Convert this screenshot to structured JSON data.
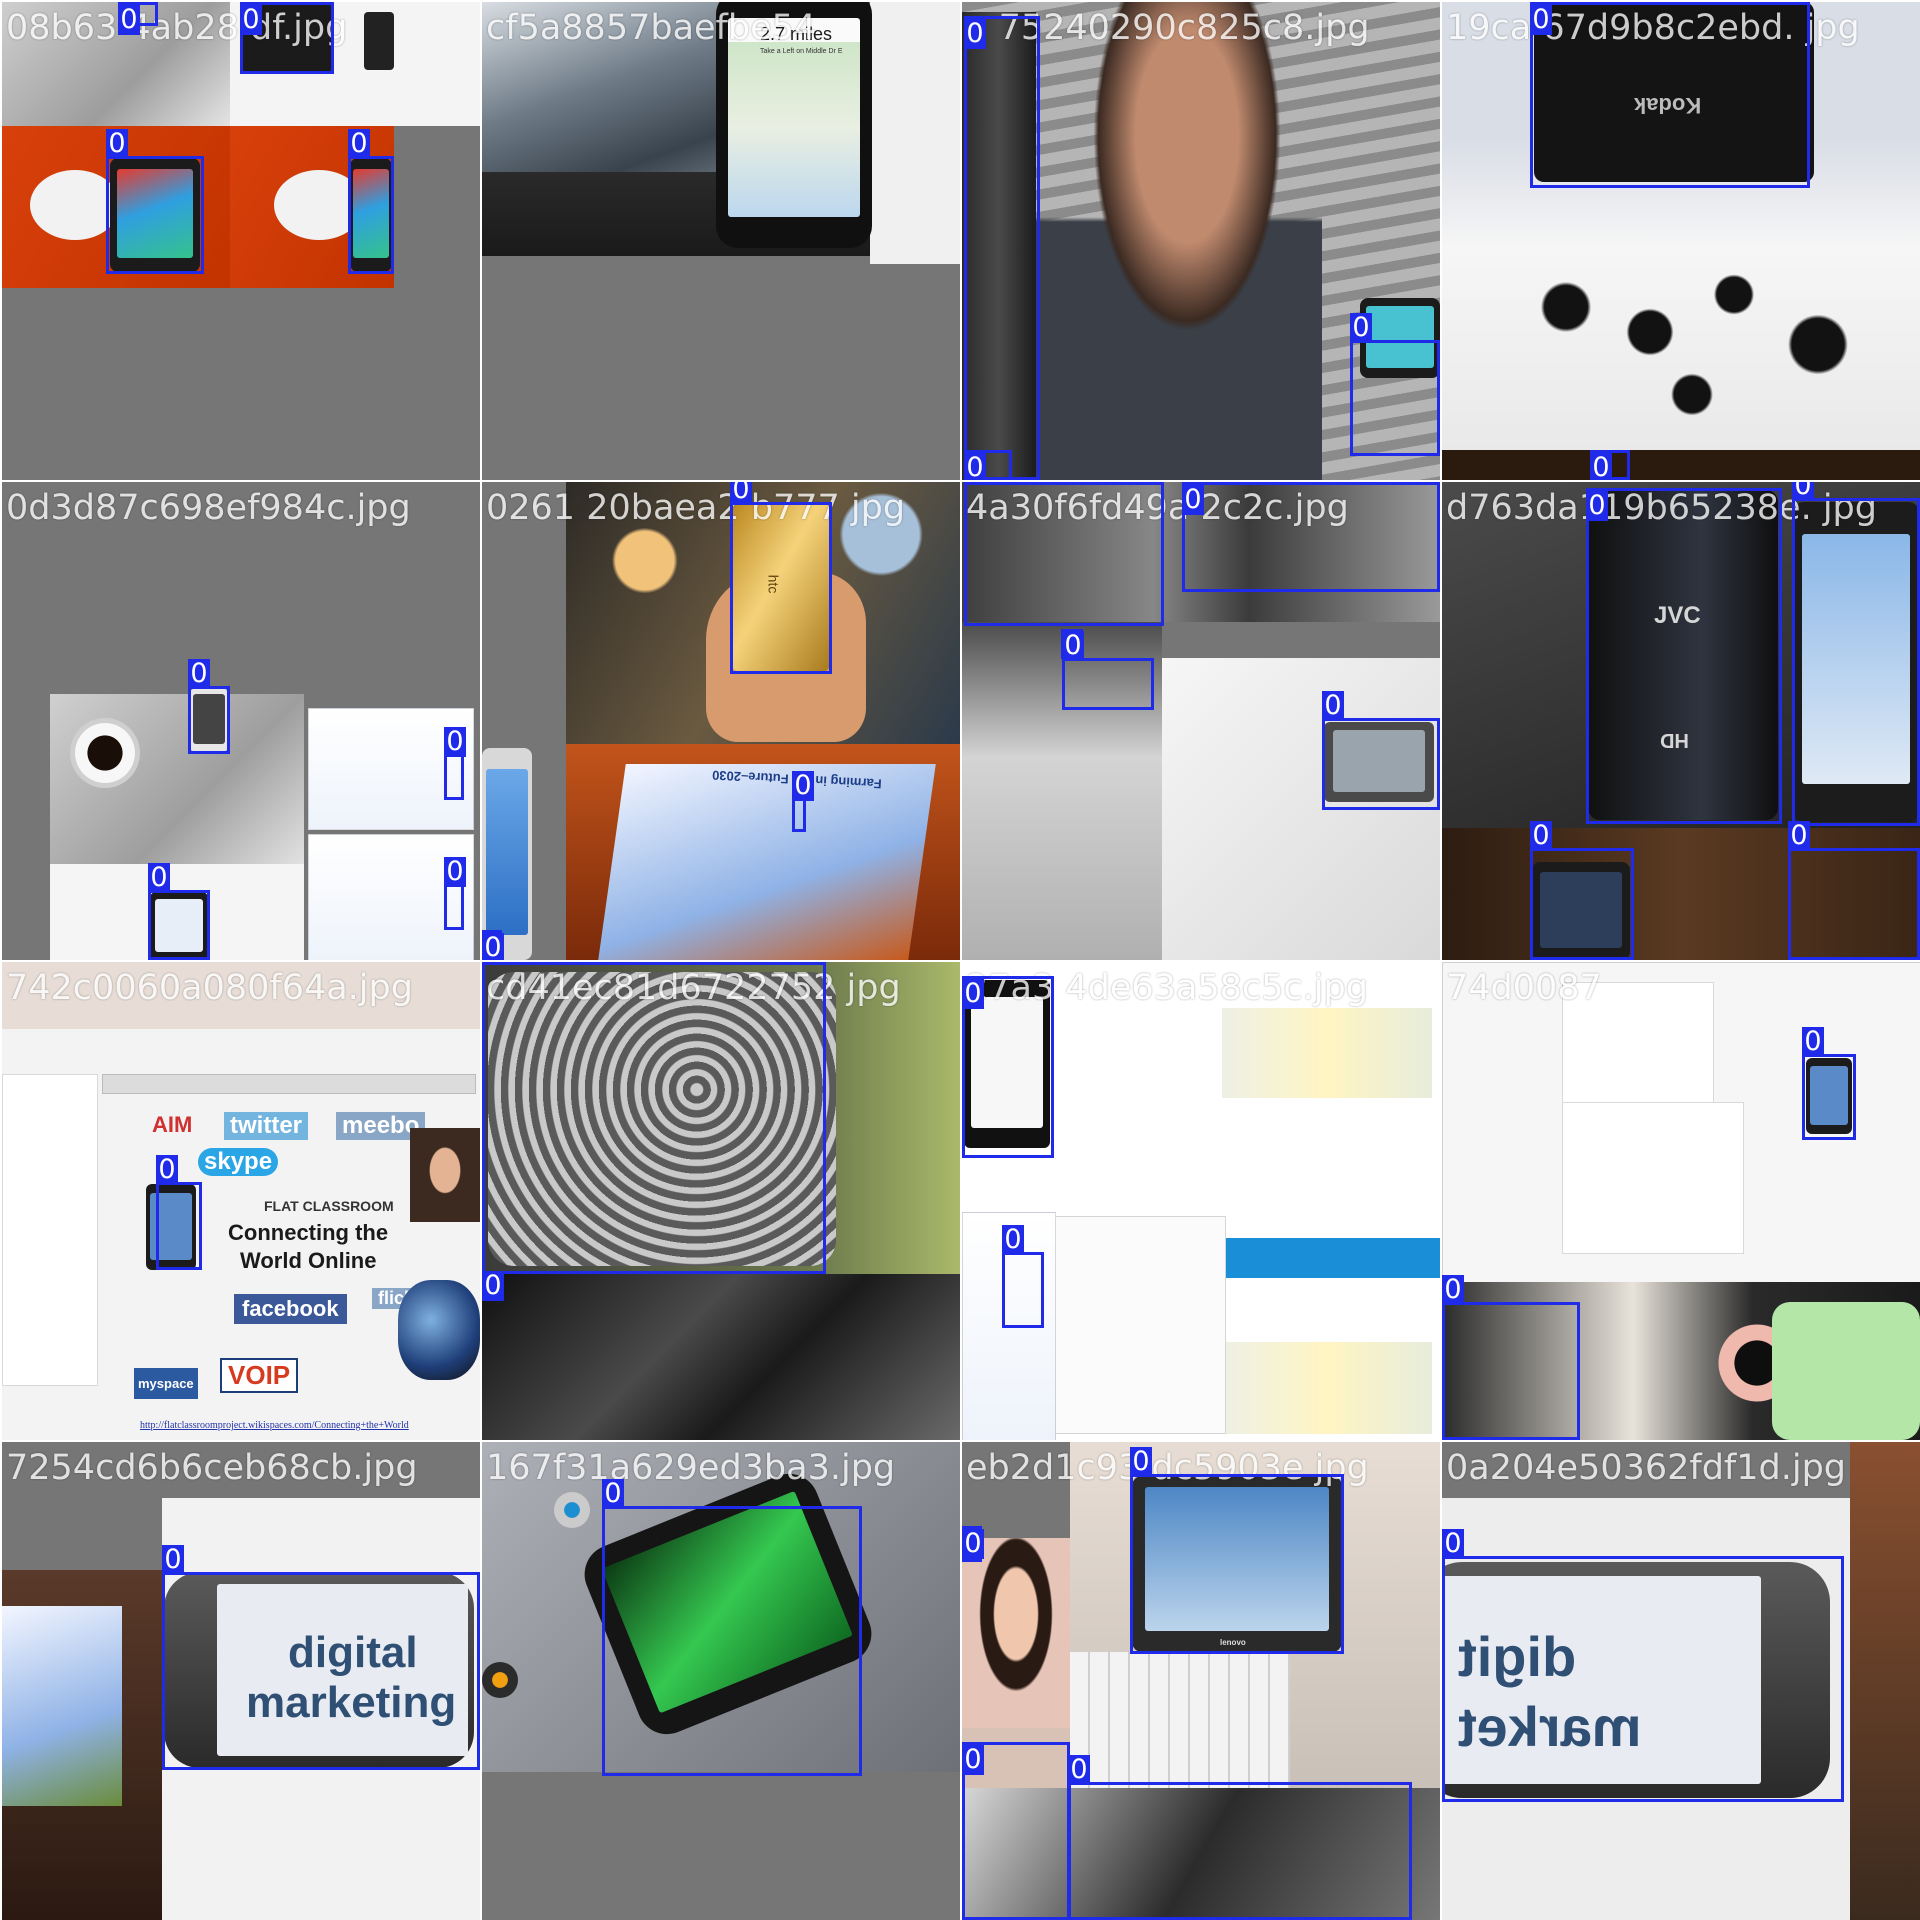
{
  "mosaic": {
    "tiles": [
      {
        "filename": "08b63 4ab28 df.jpg",
        "labels": [
          "0",
          "0",
          "0",
          "0"
        ]
      },
      {
        "filename": "cf5a8857baefbe54",
        "labels": []
      },
      {
        "filename": "a 75240290c825c8.jpg",
        "labels": [
          "0",
          "0",
          "0"
        ]
      },
      {
        "filename": "19ca 67d9b8c2ebd. jpg",
        "labels": [
          "0",
          "0"
        ]
      },
      {
        "filename": "0d3d87c698ef984c.jpg",
        "labels": [
          "0",
          "0",
          "0",
          "0"
        ]
      },
      {
        "filename": "0261 20baea2 b777 jpg",
        "labels": [
          "0",
          "0",
          "0"
        ]
      },
      {
        "filename": "4a30f6fd49a 2c2c.jpg",
        "labels": [
          "0",
          "0",
          "0"
        ]
      },
      {
        "filename": "d763da119b65238e. jpg",
        "labels": [
          "0",
          "0",
          "0",
          "0"
        ]
      },
      {
        "filename": "742c0060a080f64a.jpg",
        "labels": [
          "0"
        ]
      },
      {
        "filename": "cd41ec81d6722752 jpg",
        "labels": [
          "0"
        ]
      },
      {
        "filename": "27a3 4de63a58c5c.jpg",
        "labels": [
          "0"
        ]
      },
      {
        "filename": "74d0087",
        "labels": [
          "0",
          "0"
        ]
      },
      {
        "filename": "7254cd6b6ceb68cb.jpg",
        "labels": [
          "0"
        ]
      },
      {
        "filename": "167f31a629ed3ba3.jpg",
        "labels": [
          "0"
        ]
      },
      {
        "filename": "eb2d1c93 dc5903e jpg",
        "labels": [
          "0",
          "0",
          "0",
          "0"
        ]
      },
      {
        "filename": "0a204e50362fdf1d.jpg",
        "labels": [
          "0"
        ]
      }
    ]
  },
  "photo_text": {
    "digital_marketing": [
      "digital",
      "marketing"
    ],
    "digital_mirrored": [
      "digit",
      "market"
    ],
    "map_distance": "2.7 miles",
    "map_direction": "Take a Left on Middle Dr E",
    "connecting": [
      "Connecting the",
      "World Online"
    ],
    "flat_classroom": "FLAT CLASSROOM",
    "social": [
      "AIM",
      "twitter",
      "meebo",
      "skype",
      "facebook",
      "flickr",
      "myspace",
      "VOIP"
    ],
    "farming": "Farming in the Future–2030",
    "brand_htc": "htc",
    "brand_kodak": "Kodak",
    "brand_jvc": "JVC",
    "brand_hd": "HD",
    "brand_lenovo": "lenovo",
    "url": "http://flatclassroomproject.wikispaces.com/Connecting+the+World"
  },
  "colors": {
    "box": "#1f2be8",
    "canvas": "#767676"
  }
}
